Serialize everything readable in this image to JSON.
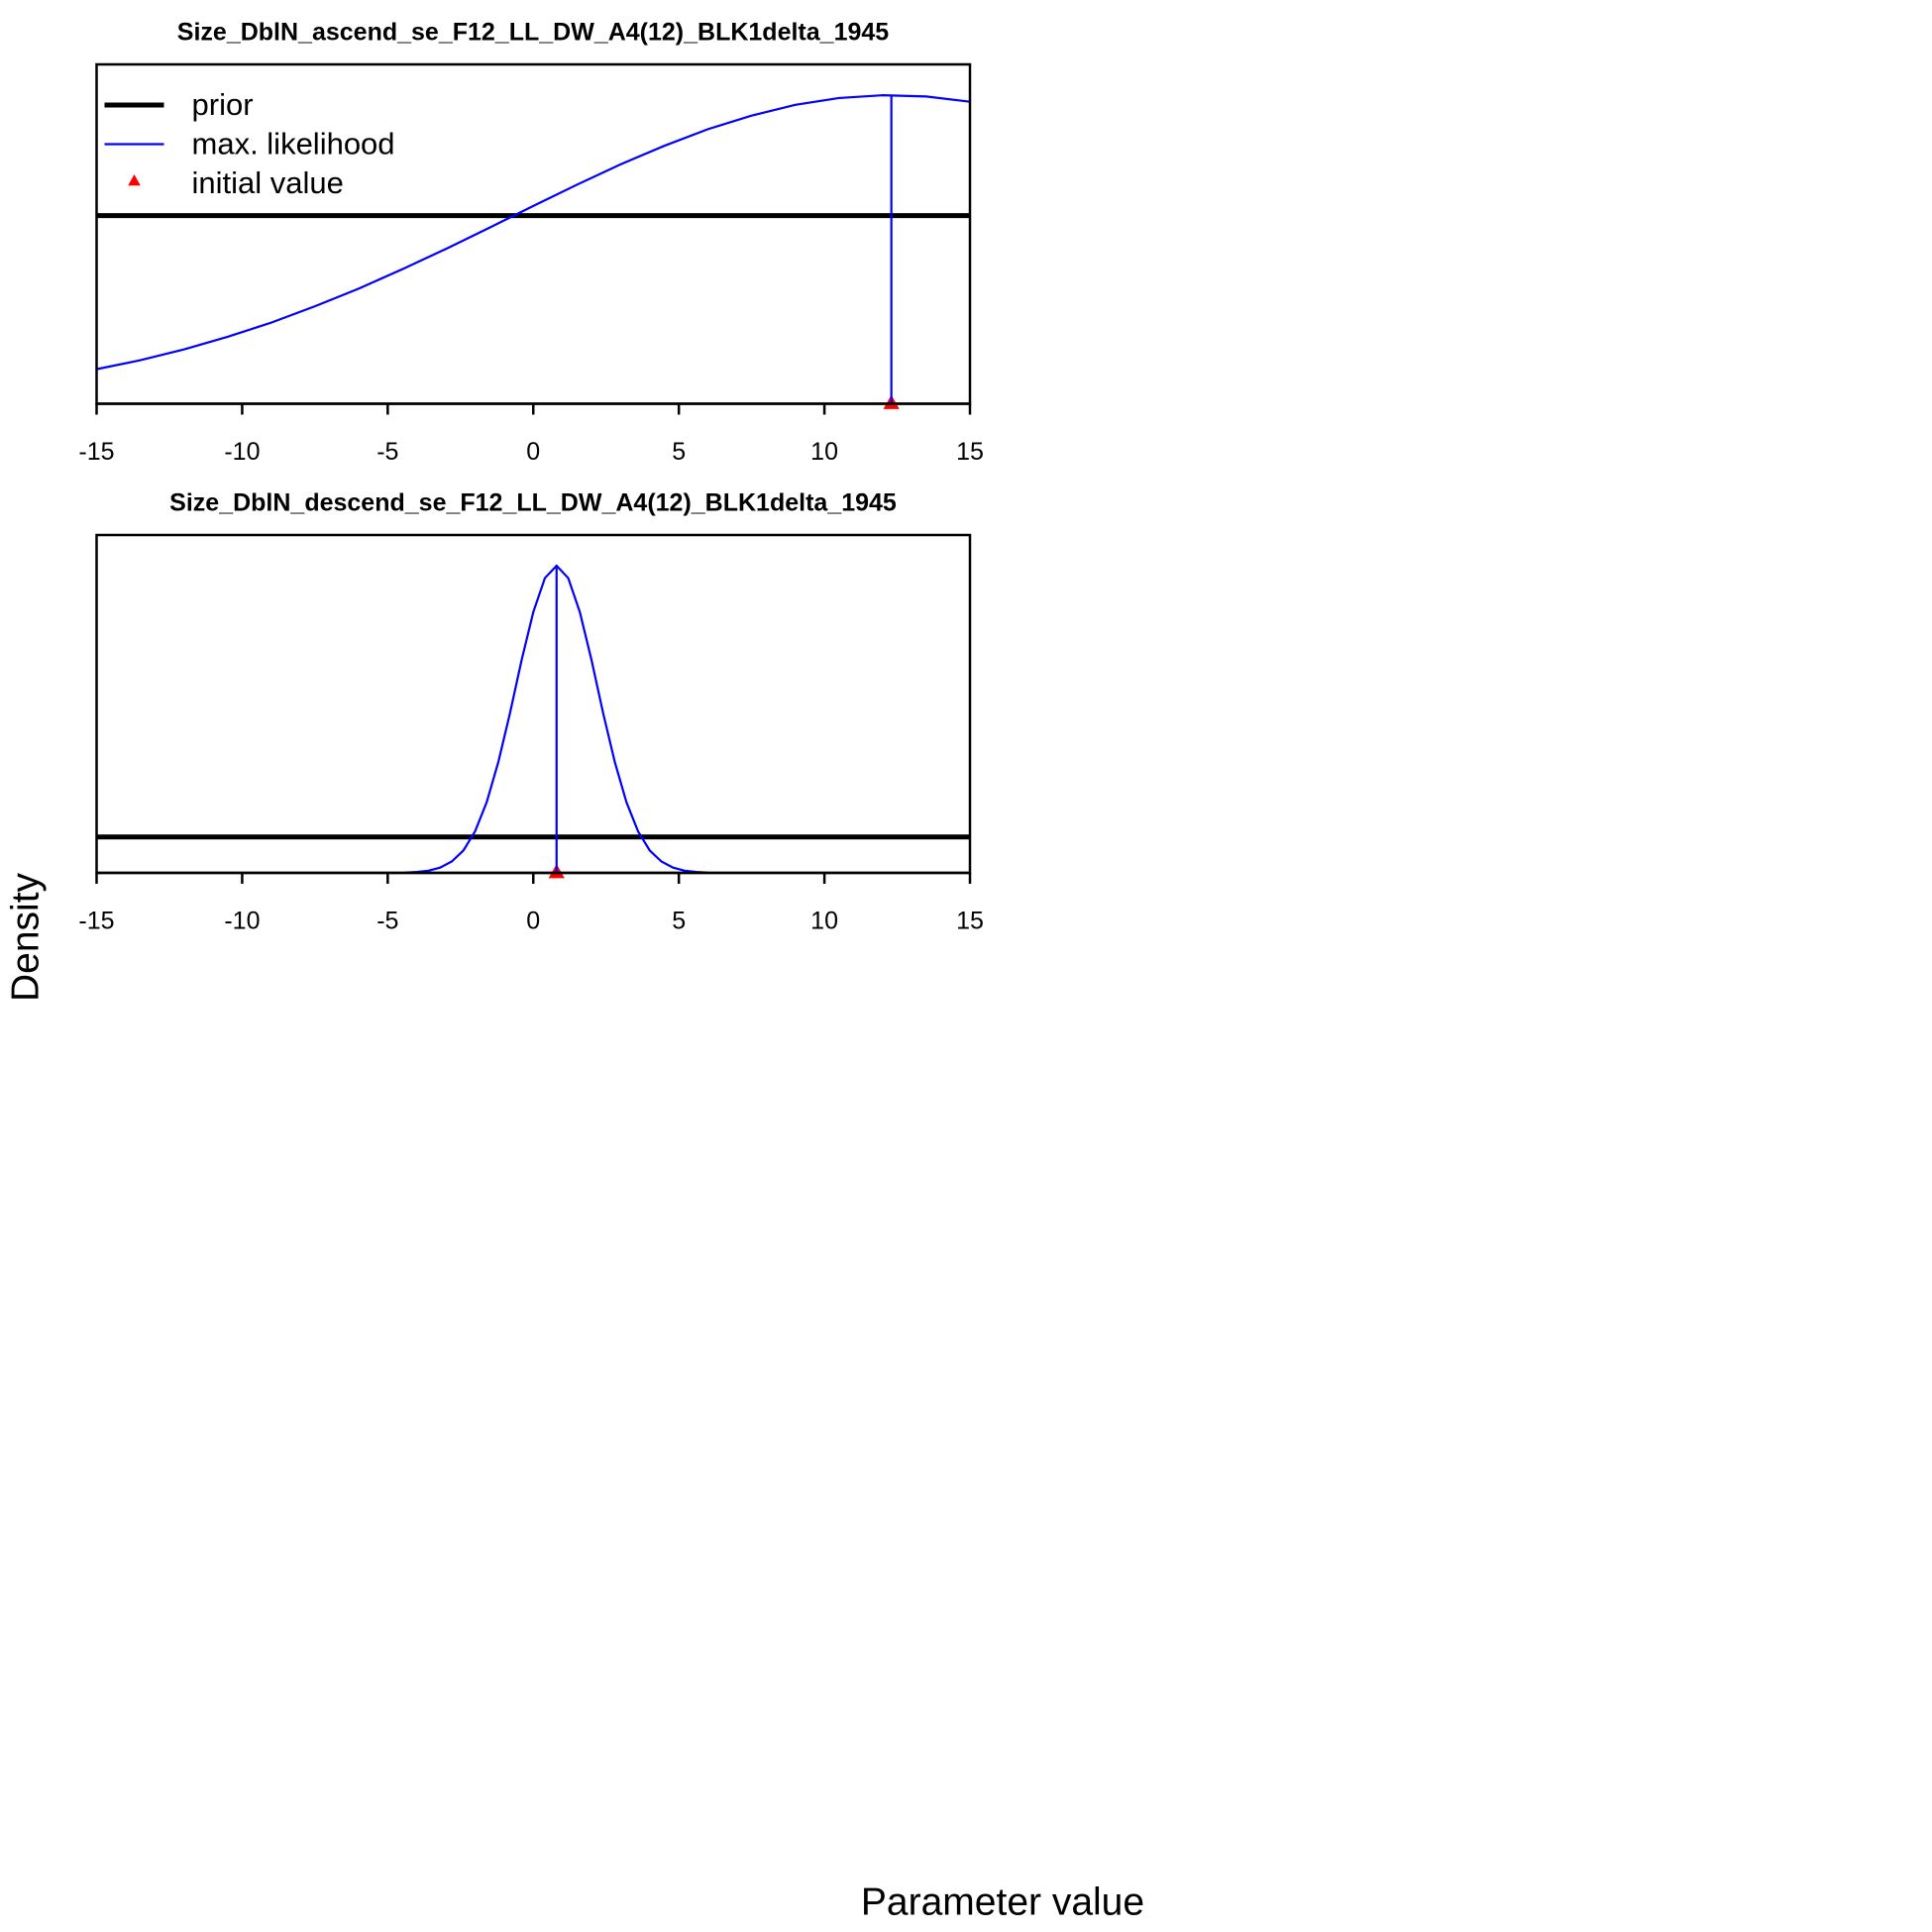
{
  "xlabel": "Parameter value",
  "ylabel": "Density",
  "chart_data": [
    {
      "type": "line",
      "title": "Size_DblN_ascend_se_F12_LL_DW_A4(12)_BLK1delta_1945",
      "xlim": [
        -15,
        15
      ],
      "ylim": [
        0,
        1.1
      ],
      "xticks": [
        -15,
        -10,
        -5,
        0,
        5,
        10,
        15
      ],
      "legend": "topleft",
      "series": [
        {
          "name": "prior",
          "color": "#000000",
          "mark": "thick-line",
          "x": [
            -15,
            15
          ],
          "values": [
            0.61,
            0.61
          ]
        },
        {
          "name": "max. likelihood",
          "color": "#0000ff",
          "mark": "line",
          "x": [
            -15,
            -13.5,
            -12,
            -10.5,
            -9,
            -7.5,
            -6,
            -4.5,
            -3,
            -1.5,
            0,
            1.5,
            3,
            4.5,
            6,
            7.5,
            9,
            10.5,
            12,
            13.5,
            15
          ],
          "values": [
            0.112,
            0.141,
            0.176,
            0.217,
            0.263,
            0.316,
            0.373,
            0.436,
            0.502,
            0.571,
            0.641,
            0.71,
            0.776,
            0.836,
            0.89,
            0.934,
            0.969,
            0.991,
            1.0,
            0.996,
            0.979
          ]
        },
        {
          "name": "initial value",
          "color": "#ff0000",
          "mark": "triangle",
          "x": [
            12.3
          ],
          "values": [
            0
          ]
        }
      ],
      "estimate": {
        "x": 12.3,
        "y": 1.0
      }
    },
    {
      "type": "line",
      "title": "Size_DblN_descend_se_F12_LL_DW_A4(12)_BLK1delta_1945",
      "xlim": [
        -15,
        15
      ],
      "ylim": [
        0,
        1.1
      ],
      "xticks": [
        -15,
        -10,
        -5,
        0,
        5,
        10,
        15
      ],
      "series": [
        {
          "color": "#000000",
          "mark": "thick-line",
          "x": [
            -15,
            15
          ],
          "values": [
            0.117,
            0.117
          ]
        },
        {
          "color": "#0000ff",
          "mark": "line",
          "x": [
            -4.4,
            -4.0,
            -3.6,
            -3.2,
            -2.8,
            -2.4,
            -2.0,
            -1.6,
            -1.2,
            -0.8,
            -0.4,
            0,
            0.4,
            0.8,
            1.2,
            1.6,
            2.0,
            2.4,
            2.8,
            3.2,
            3.6,
            4.0,
            4.4,
            4.8,
            5.2,
            5.6,
            6.0
          ],
          "values": [
            0.001,
            0.003,
            0.007,
            0.017,
            0.037,
            0.073,
            0.135,
            0.23,
            0.361,
            0.52,
            0.693,
            0.849,
            0.96,
            1.0,
            0.96,
            0.849,
            0.693,
            0.52,
            0.361,
            0.23,
            0.135,
            0.073,
            0.037,
            0.017,
            0.007,
            0.003,
            0.001
          ]
        },
        {
          "color": "#ff0000",
          "mark": "triangle",
          "x": [
            0.8
          ],
          "values": [
            0
          ]
        }
      ],
      "estimate": {
        "x": 0.8,
        "y": 1.0
      }
    }
  ]
}
